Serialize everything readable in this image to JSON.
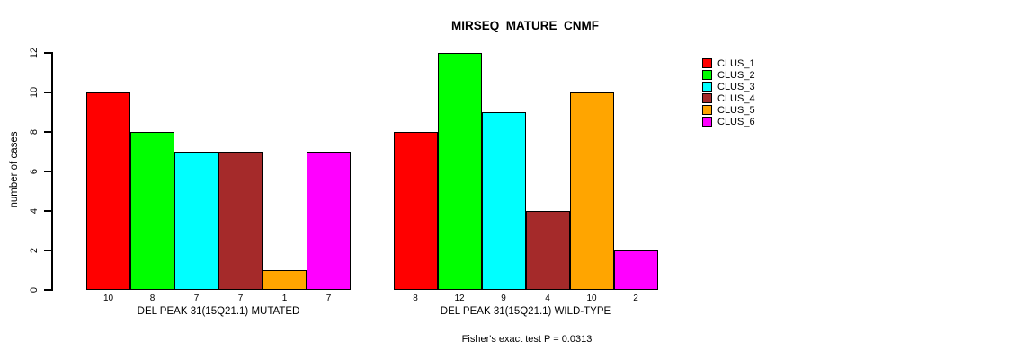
{
  "chart_data": {
    "type": "bar",
    "title": "MIRSEQ_MATURE_CNMF",
    "ylabel": "number of cases",
    "ylim": [
      0,
      12
    ],
    "yticks": [
      0,
      2,
      4,
      6,
      8,
      10,
      12
    ],
    "grid": false,
    "legend_position": "right",
    "bar_value_labels": true,
    "categories": [
      "DEL PEAK 31(15Q21.1) MUTATED",
      "DEL PEAK 31(15Q21.1) WILD-TYPE"
    ],
    "series": [
      {
        "name": "CLUS_1",
        "color": "#FF0000",
        "values": [
          10,
          8
        ]
      },
      {
        "name": "CLUS_2",
        "color": "#00FF00",
        "values": [
          8,
          12
        ]
      },
      {
        "name": "CLUS_3",
        "color": "#00FFFF",
        "values": [
          7,
          9
        ]
      },
      {
        "name": "CLUS_4",
        "color": "#A52A2A",
        "values": [
          7,
          4
        ]
      },
      {
        "name": "CLUS_5",
        "color": "#FFA500",
        "values": [
          1,
          10
        ]
      },
      {
        "name": "CLUS_6",
        "color": "#FF00FF",
        "values": [
          7,
          2
        ]
      }
    ],
    "annotation": "Fisher's exact test P = 0.0313"
  }
}
